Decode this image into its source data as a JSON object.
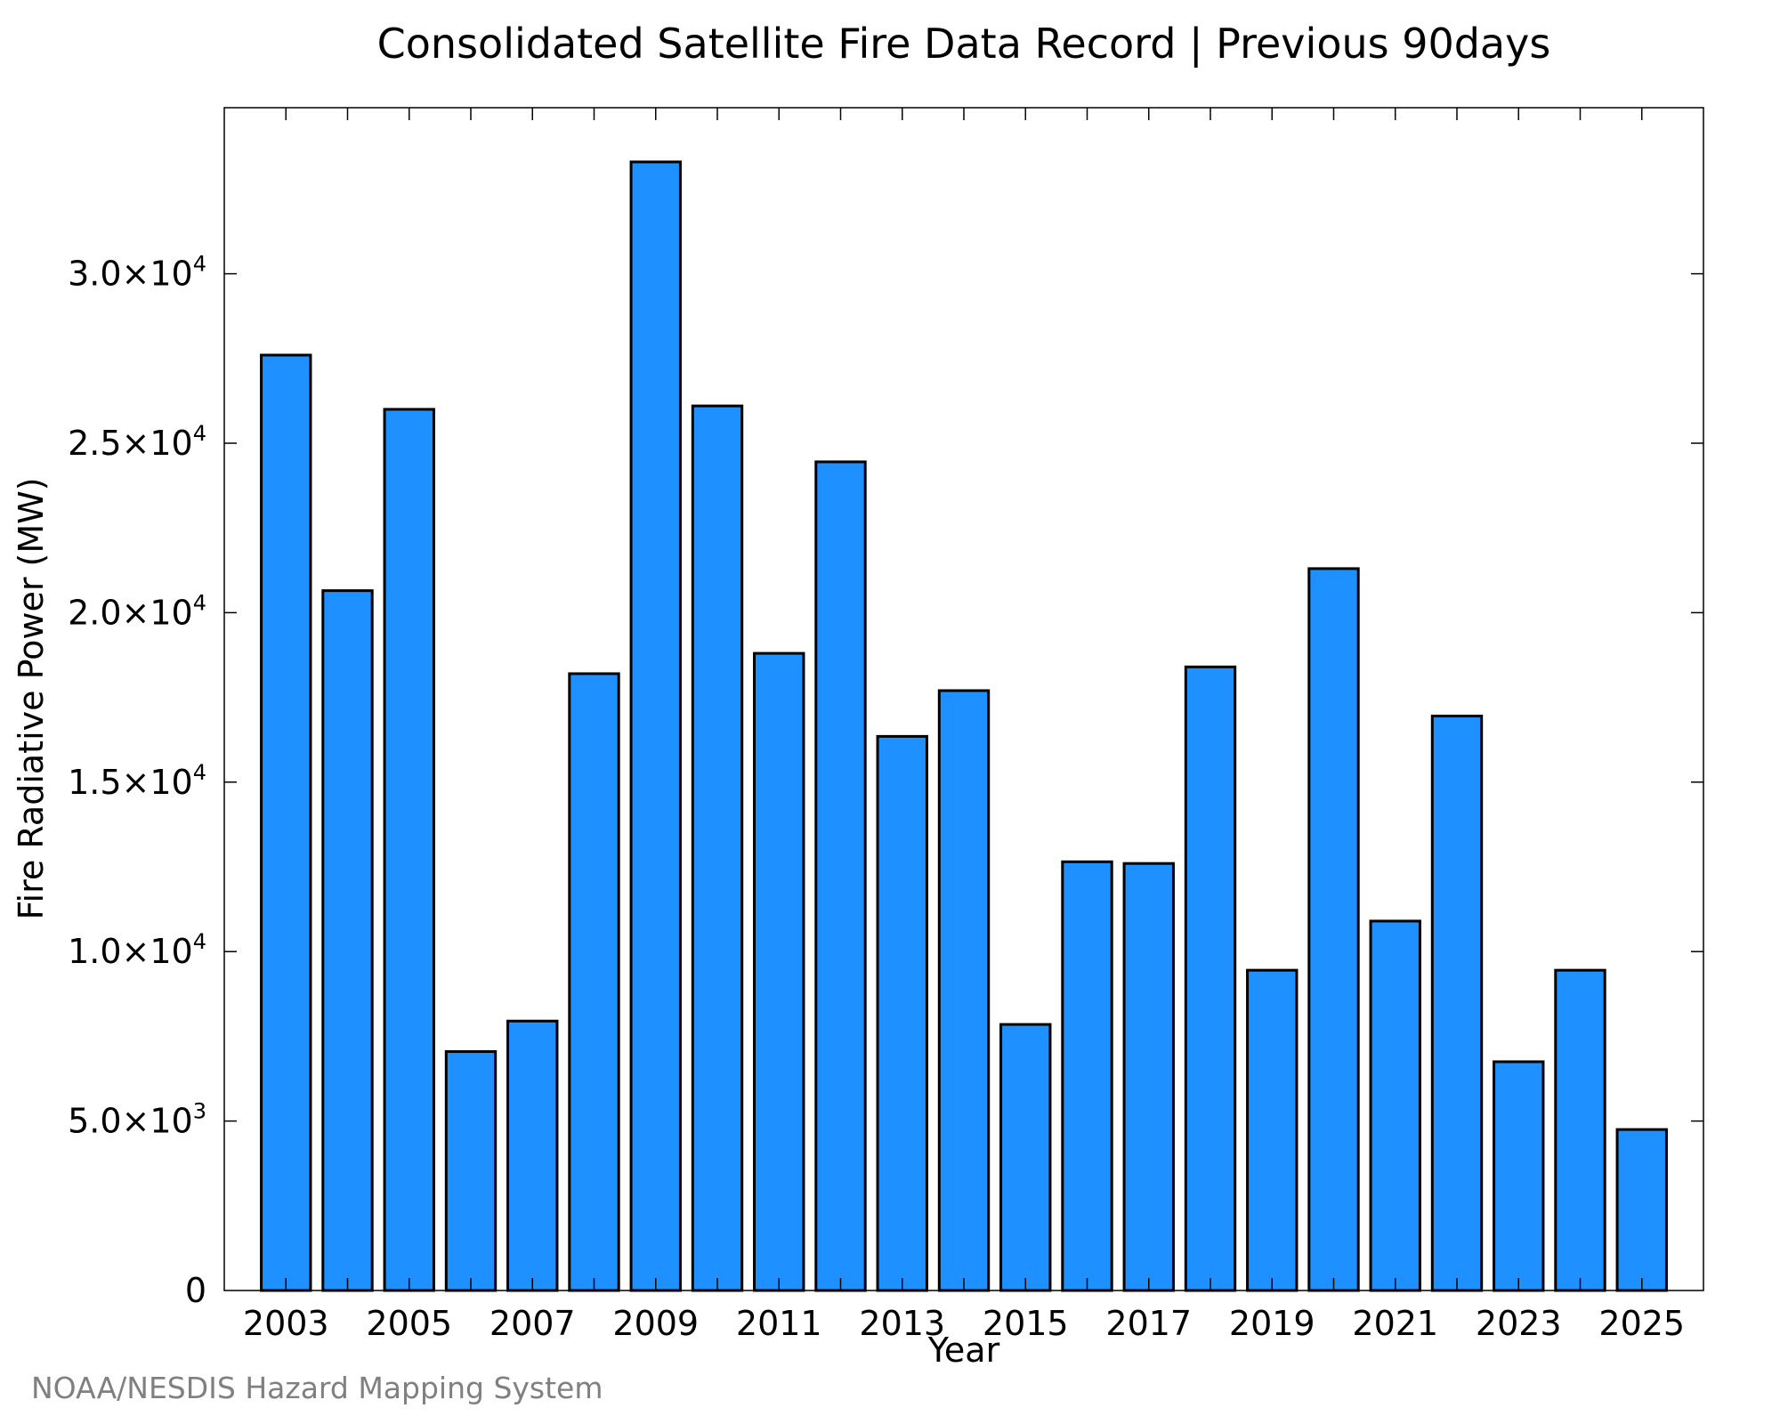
{
  "chart_data": {
    "type": "bar",
    "title": "Consolidated Satellite Fire Data Record | Previous 90days",
    "xlabel": "Year",
    "ylabel": "Fire Radiative Power (MW)",
    "categories": [
      "2003",
      "2004",
      "2005",
      "2006",
      "2007",
      "2008",
      "2009",
      "2010",
      "2011",
      "2012",
      "2013",
      "2014",
      "2015",
      "2016",
      "2017",
      "2018",
      "2019",
      "2020",
      "2021",
      "2022",
      "2023",
      "2024",
      "2025"
    ],
    "values": [
      27600,
      20650,
      26000,
      7050,
      7950,
      18200,
      33300,
      26100,
      18800,
      24450,
      16350,
      17700,
      7850,
      12650,
      12600,
      18400,
      9450,
      21300,
      10900,
      16950,
      6750,
      9450,
      4750
    ],
    "x_tick_labels": [
      "2003",
      "2005",
      "2007",
      "2009",
      "2011",
      "2013",
      "2015",
      "2017",
      "2019",
      "2021",
      "2023",
      "2025"
    ],
    "y_ticks": [
      {
        "value": 0,
        "mantissa": "0",
        "exponent": ""
      },
      {
        "value": 5000,
        "mantissa": "5.0×10",
        "exponent": "3"
      },
      {
        "value": 10000,
        "mantissa": "1.0×10",
        "exponent": "4"
      },
      {
        "value": 15000,
        "mantissa": "1.5×10",
        "exponent": "4"
      },
      {
        "value": 20000,
        "mantissa": "2.0×10",
        "exponent": "4"
      },
      {
        "value": 25000,
        "mantissa": "2.5×10",
        "exponent": "4"
      },
      {
        "value": 30000,
        "mantissa": "3.0×10",
        "exponent": "4"
      }
    ],
    "ylim": [
      0,
      34900
    ],
    "xlim": [
      2002,
      2026
    ],
    "bar_color": "#1E90FF",
    "grid": false,
    "legend": "none"
  },
  "credit": "NOAA/NESDIS Hazard Mapping System"
}
